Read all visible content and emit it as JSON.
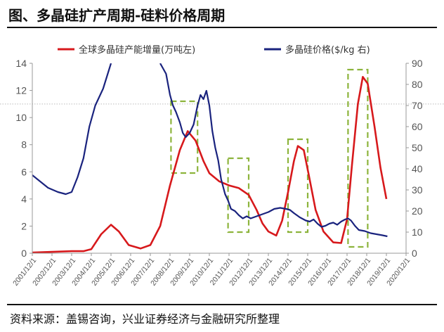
{
  "figure": {
    "title": "图、多晶硅扩产周期-硅料价格周期",
    "source": "资料来源：盖锡咨询，兴业证券经济与金融研究所整理"
  },
  "chart_data": {
    "type": "line",
    "title": "图、多晶硅扩产周期-硅料价格周期",
    "x_axis": {
      "tick_labels": [
        "2001/12/1",
        "2002/12/1",
        "2003/12/1",
        "2004/12/1",
        "2005/12/1",
        "2006/12/1",
        "2007/12/1",
        "2008/12/1",
        "2009/12/1",
        "2010/12/1",
        "2011/12/1",
        "2012/12/1",
        "2013/12/1",
        "2014/12/1",
        "2015/12/1",
        "2016/12/1",
        "2017/12/1",
        "2018/12/1",
        "2019/12/1",
        "2020/12/1"
      ]
    },
    "y_left": {
      "ylim": [
        0,
        14
      ],
      "ticks": [
        0,
        2,
        4,
        6,
        8,
        10,
        12,
        14
      ]
    },
    "y_right": {
      "ylim": [
        0,
        90
      ],
      "ticks": [
        0,
        10,
        20,
        30,
        40,
        50,
        60,
        70,
        80,
        90
      ]
    },
    "legend_position": "top",
    "series": [
      {
        "name": "全球多晶硅产能增量(万吨左)",
        "axis": "left",
        "color": "#d7191c",
        "points": [
          [
            2001.9,
            0.05
          ],
          [
            2002.9,
            0.1
          ],
          [
            2003.9,
            0.15
          ],
          [
            2004.5,
            0.15
          ],
          [
            2004.9,
            0.3
          ],
          [
            2005.4,
            1.4
          ],
          [
            2005.9,
            2.1
          ],
          [
            2006.3,
            1.6
          ],
          [
            2006.8,
            0.6
          ],
          [
            2007.4,
            0.35
          ],
          [
            2007.9,
            0.6
          ],
          [
            2008.4,
            2.0
          ],
          [
            2008.9,
            5.0
          ],
          [
            2009.4,
            7.6
          ],
          [
            2009.8,
            9.0
          ],
          [
            2010.2,
            8.3
          ],
          [
            2010.6,
            6.8
          ],
          [
            2010.9,
            5.9
          ],
          [
            2011.4,
            5.3
          ],
          [
            2011.9,
            5.0
          ],
          [
            2012.4,
            4.8
          ],
          [
            2012.9,
            4.3
          ],
          [
            2013.3,
            3.2
          ],
          [
            2013.6,
            2.2
          ],
          [
            2013.9,
            1.6
          ],
          [
            2014.3,
            1.3
          ],
          [
            2014.6,
            2.4
          ],
          [
            2014.9,
            4.5
          ],
          [
            2015.2,
            6.8
          ],
          [
            2015.4,
            7.9
          ],
          [
            2015.7,
            7.6
          ],
          [
            2015.95,
            5.8
          ],
          [
            2016.3,
            3.2
          ],
          [
            2016.7,
            1.6
          ],
          [
            2017.2,
            0.8
          ],
          [
            2017.6,
            0.75
          ],
          [
            2017.9,
            2.5
          ],
          [
            2018.15,
            6.5
          ],
          [
            2018.45,
            11.0
          ],
          [
            2018.7,
            13.0
          ],
          [
            2018.95,
            12.5
          ],
          [
            2019.3,
            9.3
          ],
          [
            2019.6,
            6.3
          ],
          [
            2019.9,
            4.0
          ]
        ]
      },
      {
        "name": "多晶硅价格($/kg 右)",
        "axis": "right",
        "color": "#1a237e",
        "points": [
          [
            2001.9,
            37
          ],
          [
            2002.3,
            34
          ],
          [
            2002.7,
            31
          ],
          [
            2003.2,
            29
          ],
          [
            2003.6,
            28
          ],
          [
            2003.9,
            29
          ],
          [
            2004.2,
            36
          ],
          [
            2004.5,
            45
          ],
          [
            2004.8,
            60
          ],
          [
            2005.1,
            70
          ],
          [
            2005.5,
            78
          ],
          [
            2005.9,
            90
          ],
          [
            2008.4,
            90
          ],
          [
            2008.7,
            85
          ],
          [
            2008.9,
            75
          ],
          [
            2009.05,
            70
          ],
          [
            2009.2,
            67
          ],
          [
            2009.4,
            62
          ],
          [
            2009.55,
            57
          ],
          [
            2009.7,
            55
          ],
          [
            2009.9,
            57
          ],
          [
            2010.1,
            61
          ],
          [
            2010.3,
            70
          ],
          [
            2010.45,
            75
          ],
          [
            2010.6,
            73
          ],
          [
            2010.75,
            77
          ],
          [
            2010.9,
            70
          ],
          [
            2011.05,
            58
          ],
          [
            2011.2,
            50
          ],
          [
            2011.35,
            44
          ],
          [
            2011.5,
            35
          ],
          [
            2011.7,
            28
          ],
          [
            2011.85,
            25
          ],
          [
            2012.0,
            21
          ],
          [
            2012.2,
            20
          ],
          [
            2012.4,
            18
          ],
          [
            2012.6,
            16.5
          ],
          [
            2012.8,
            17.5
          ],
          [
            2013.0,
            16.5
          ],
          [
            2013.3,
            17.5
          ],
          [
            2013.6,
            18.5
          ],
          [
            2013.9,
            19.5
          ],
          [
            2014.2,
            21
          ],
          [
            2014.5,
            21.5
          ],
          [
            2014.8,
            21
          ],
          [
            2015.0,
            20.5
          ],
          [
            2015.2,
            19
          ],
          [
            2015.5,
            17
          ],
          [
            2015.8,
            15.5
          ],
          [
            2016.0,
            15
          ],
          [
            2016.2,
            16
          ],
          [
            2016.4,
            14
          ],
          [
            2016.6,
            12.5
          ],
          [
            2016.8,
            13
          ],
          [
            2017.0,
            14
          ],
          [
            2017.2,
            14.5
          ],
          [
            2017.4,
            13.5
          ],
          [
            2017.6,
            15
          ],
          [
            2017.8,
            16
          ],
          [
            2017.95,
            16.5
          ],
          [
            2018.1,
            15.5
          ],
          [
            2018.3,
            13
          ],
          [
            2018.5,
            11
          ],
          [
            2018.8,
            10.5
          ],
          [
            2019.1,
            9.5
          ],
          [
            2019.4,
            9
          ],
          [
            2019.7,
            8.5
          ],
          [
            2019.95,
            8
          ]
        ]
      }
    ],
    "highlight_boxes": [
      {
        "x0": 2008.95,
        "x1": 2010.3,
        "y0": 38,
        "y1": 72
      },
      {
        "x0": 2011.85,
        "x1": 2012.9,
        "y0": 10,
        "y1": 45
      },
      {
        "x0": 2014.9,
        "x1": 2015.9,
        "y0": 10,
        "y1": 54
      },
      {
        "x0": 2017.95,
        "x1": 2018.95,
        "y0": 3,
        "y1": 87
      }
    ],
    "highlight_color": "#8db43c",
    "reference_line": {
      "axis": "left",
      "value": 11,
      "style": "dotted"
    }
  }
}
